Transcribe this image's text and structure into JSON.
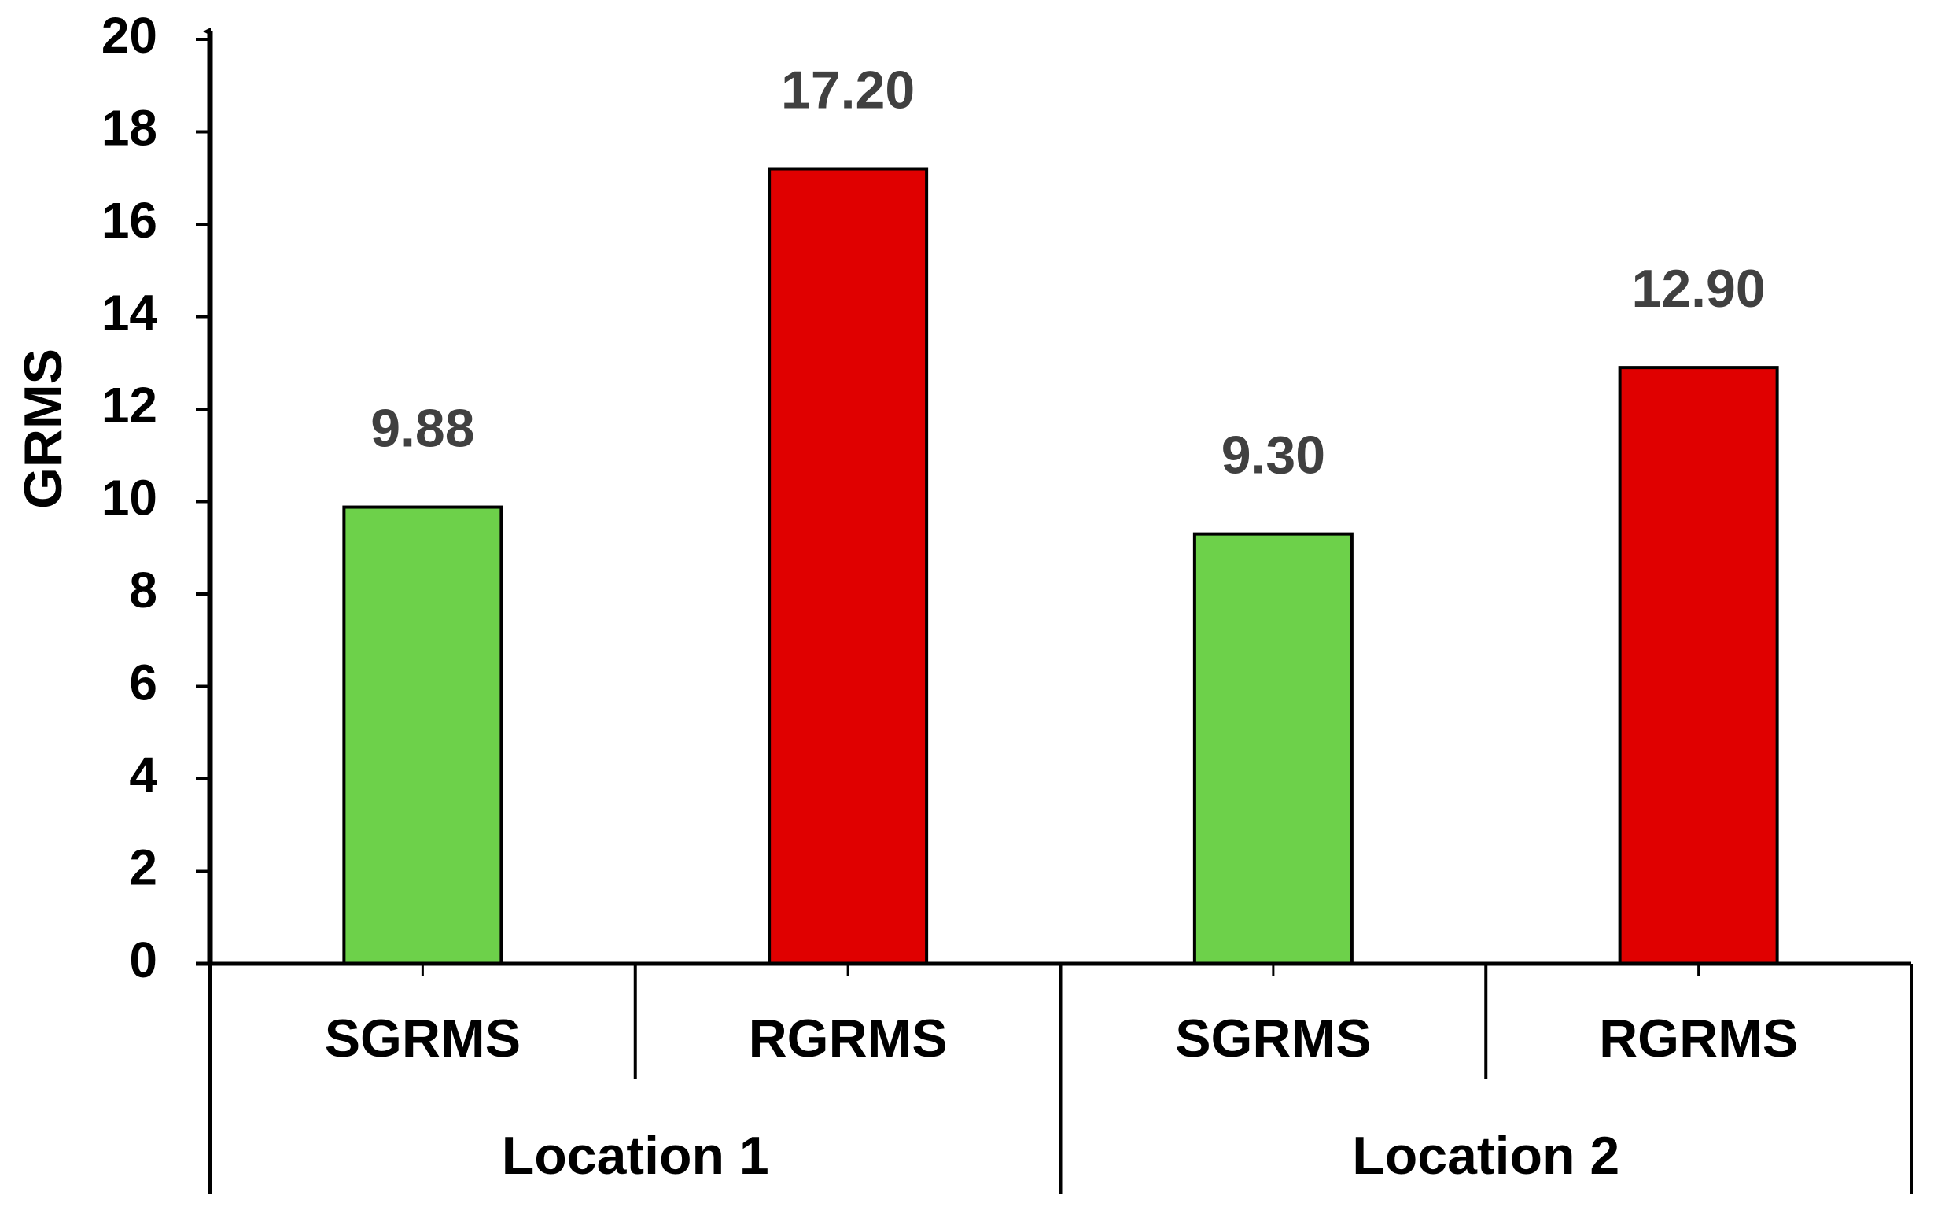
{
  "chart_data": {
    "type": "bar",
    "y_label": "GRMS",
    "categories": [
      "SGRMS",
      "RGRMS",
      "SGRMS",
      "RGRMS"
    ],
    "groups": [
      "Location 1",
      "Location 2"
    ],
    "values": [
      9.88,
      17.2,
      9.3,
      12.9
    ],
    "value_labels": [
      "9.88",
      "17.20",
      "9.30",
      "12.90"
    ],
    "colors": [
      "#6dd14a",
      "#e00000",
      "#6dd14a",
      "#e00000"
    ],
    "ylim": [
      0,
      20
    ],
    "yticks": [
      0,
      2,
      4,
      6,
      8,
      10,
      12,
      14,
      16,
      18,
      20
    ]
  }
}
